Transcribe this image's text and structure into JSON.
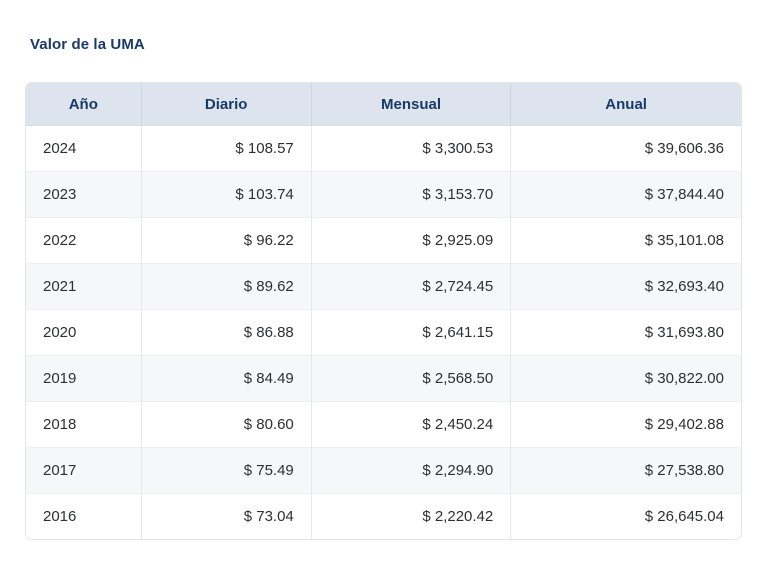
{
  "title": "Valor de la UMA",
  "colors": {
    "title_text": "#1b3a68",
    "header_background": "#dde4ee",
    "header_text": "#1a3a66",
    "row_alt_background": "#f5f7fa",
    "cell_text": "#2e2f31",
    "table_border": "#e2e6eb"
  },
  "table": {
    "columns": [
      {
        "key": "anio",
        "label": "Año",
        "align": "left"
      },
      {
        "key": "diario",
        "label": "Diario",
        "align": "right"
      },
      {
        "key": "mensual",
        "label": "Mensual",
        "align": "right"
      },
      {
        "key": "anual",
        "label": "Anual",
        "align": "right"
      }
    ],
    "rows": [
      {
        "anio": "2024",
        "diario": "$ 108.57",
        "mensual": "$ 3,300.53",
        "anual": "$ 39,606.36"
      },
      {
        "anio": "2023",
        "diario": "$ 103.74",
        "mensual": "$ 3,153.70",
        "anual": "$ 37,844.40"
      },
      {
        "anio": "2022",
        "diario": "$ 96.22",
        "mensual": "$ 2,925.09",
        "anual": "$ 35,101.08"
      },
      {
        "anio": "2021",
        "diario": "$ 89.62",
        "mensual": "$ 2,724.45",
        "anual": "$ 32,693.40"
      },
      {
        "anio": "2020",
        "diario": "$ 86.88",
        "mensual": "$ 2,641.15",
        "anual": "$ 31,693.80"
      },
      {
        "anio": "2019",
        "diario": "$ 84.49",
        "mensual": "$ 2,568.50",
        "anual": "$ 30,822.00"
      },
      {
        "anio": "2018",
        "diario": "$ 80.60",
        "mensual": "$ 2,450.24",
        "anual": "$ 29,402.88"
      },
      {
        "anio": "2017",
        "diario": "$ 75.49",
        "mensual": "$ 2,294.90",
        "anual": "$ 27,538.80"
      },
      {
        "anio": "2016",
        "diario": "$ 73.04",
        "mensual": "$ 2,220.42",
        "anual": "$ 26,645.04"
      }
    ]
  }
}
